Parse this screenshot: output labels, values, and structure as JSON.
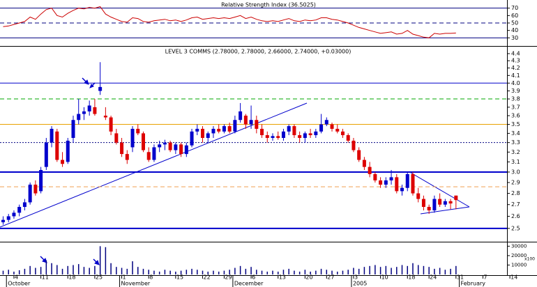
{
  "chart_data": [
    {
      "type": "line",
      "title": "Relative Strength Index (36.5025)",
      "color": "#cc0000",
      "ylim": [
        20,
        80
      ],
      "yticks": [
        30,
        40,
        50,
        60,
        70
      ],
      "levels": [
        {
          "value": 70,
          "color": "#000080",
          "style": "solid",
          "width": 1
        },
        {
          "value": 50,
          "color": "#000080",
          "style": "dashed",
          "width": 1
        },
        {
          "value": 30,
          "color": "#000080",
          "style": "solid",
          "width": 1
        }
      ],
      "values": [
        45,
        46,
        48,
        50,
        52,
        58,
        55,
        62,
        68,
        70,
        60,
        58,
        63,
        67,
        70,
        69,
        71,
        70,
        72,
        62,
        58,
        55,
        52,
        51,
        57,
        56,
        52,
        51,
        53,
        54,
        55,
        53,
        54,
        52,
        54,
        57,
        58,
        55,
        56,
        57,
        56,
        57,
        56,
        58,
        60,
        56,
        58,
        55,
        53,
        52,
        53,
        52,
        54,
        56,
        53,
        52,
        54,
        53,
        54,
        57,
        57,
        55,
        54,
        52,
        50,
        47,
        44,
        42,
        40,
        38,
        36,
        37,
        38,
        35,
        36,
        40,
        35,
        33,
        31,
        30,
        36,
        35,
        36,
        36,
        36.5,
        null,
        null,
        null,
        null,
        null,
        null,
        null,
        null,
        null,
        null
      ]
    },
    {
      "type": "candlestick",
      "title": "LEVEL 3 COMMS (2.78000, 2.78000, 2.66000, 2.74000, +0.03000)",
      "log_scale": true,
      "ylim": [
        2.4,
        4.5
      ],
      "up_color": "#0000cc",
      "down_color": "#dd0000",
      "yticks": [
        2.5,
        2.6,
        2.7,
        2.8,
        2.9,
        {
          "value": 3,
          "label": "3.0"
        },
        3.1,
        3.2,
        3.3,
        3.4,
        3.5,
        3.6,
        3.7,
        3.8,
        3.9,
        {
          "value": 4,
          "label": "4.0"
        },
        4.1,
        4.2,
        4.3,
        4.4
      ],
      "levels": [
        {
          "value": 4.0,
          "color": "#0000cc",
          "style": "solid",
          "width": 1
        },
        {
          "value": 3.8,
          "color": "#00aa00",
          "style": "dashed",
          "width": 1
        },
        {
          "value": 3.5,
          "color": "#e8a000",
          "style": "solid",
          "width": 1
        },
        {
          "value": 3.3,
          "color": "#000080",
          "style": "dotted",
          "width": 1
        },
        {
          "value": 3.0,
          "color": "#0000cc",
          "style": "solid",
          "width": 2
        },
        {
          "value": 2.86,
          "color": "#f0a050",
          "style": "dashed",
          "width": 1
        },
        {
          "value": 2.5,
          "color": "#0000cc",
          "style": "solid",
          "width": 2
        }
      ],
      "open": [
        2.55,
        2.57,
        2.6,
        2.63,
        2.68,
        2.72,
        2.88,
        2.82,
        3.05,
        3.3,
        3.42,
        3.12,
        3.1,
        3.35,
        3.55,
        3.62,
        3.65,
        3.7,
        3.9,
        3.6,
        3.58,
        3.4,
        3.3,
        3.18,
        3.25,
        3.45,
        3.4,
        3.2,
        3.12,
        3.25,
        3.28,
        3.3,
        3.22,
        3.28,
        3.18,
        3.27,
        3.42,
        3.45,
        3.35,
        3.4,
        3.45,
        3.42,
        3.48,
        3.42,
        3.55,
        3.6,
        3.5,
        3.55,
        3.45,
        3.38,
        3.35,
        3.37,
        3.35,
        3.42,
        3.48,
        3.38,
        3.35,
        3.4,
        3.38,
        3.42,
        3.5,
        3.5,
        3.45,
        3.42,
        3.38,
        3.32,
        3.22,
        3.12,
        3.05,
        2.98,
        2.92,
        2.88,
        2.92,
        2.95,
        2.82,
        2.85,
        2.98,
        2.8,
        2.75,
        2.68,
        2.65,
        2.75,
        2.7,
        2.73,
        2.78,
        null,
        null,
        null,
        null,
        null,
        null,
        null,
        null,
        null,
        null
      ],
      "high": [
        2.6,
        2.62,
        2.65,
        2.7,
        2.75,
        2.9,
        2.92,
        3.05,
        3.35,
        3.48,
        3.45,
        3.2,
        3.35,
        3.6,
        3.8,
        3.7,
        3.78,
        3.8,
        4.28,
        3.7,
        3.6,
        3.45,
        3.35,
        3.22,
        3.48,
        3.5,
        3.42,
        3.25,
        3.28,
        3.32,
        3.33,
        3.32,
        3.3,
        3.3,
        3.3,
        3.45,
        3.5,
        3.48,
        3.42,
        3.48,
        3.5,
        3.5,
        3.52,
        3.6,
        3.75,
        3.62,
        3.72,
        3.6,
        3.5,
        3.42,
        3.4,
        3.42,
        3.45,
        3.5,
        3.5,
        3.42,
        3.42,
        3.45,
        3.45,
        3.62,
        3.58,
        3.52,
        3.5,
        3.45,
        3.4,
        3.35,
        3.25,
        3.15,
        3.1,
        3.0,
        2.95,
        2.95,
        3.02,
        2.98,
        2.88,
        3.0,
        3.0,
        2.85,
        2.78,
        2.7,
        2.78,
        2.8,
        2.75,
        2.75,
        2.78,
        null,
        null,
        null,
        null,
        null,
        null,
        null,
        null,
        null,
        null
      ],
      "low": [
        2.53,
        2.55,
        2.58,
        2.6,
        2.65,
        2.7,
        2.78,
        2.8,
        3.02,
        3.25,
        3.1,
        3.05,
        3.08,
        3.3,
        3.5,
        3.55,
        3.6,
        3.6,
        3.85,
        3.55,
        3.38,
        3.28,
        3.15,
        3.08,
        3.2,
        3.38,
        3.2,
        3.1,
        3.1,
        3.2,
        3.22,
        3.2,
        3.18,
        3.15,
        3.15,
        3.25,
        3.38,
        3.3,
        3.3,
        3.35,
        3.4,
        3.4,
        3.4,
        3.4,
        3.52,
        3.45,
        3.45,
        3.4,
        3.35,
        3.3,
        3.32,
        3.33,
        3.32,
        3.38,
        3.35,
        3.3,
        3.3,
        3.35,
        3.35,
        3.4,
        3.48,
        3.42,
        3.4,
        3.35,
        3.3,
        3.2,
        3.1,
        3.02,
        2.95,
        2.9,
        2.85,
        2.85,
        2.88,
        2.8,
        2.78,
        2.82,
        2.78,
        2.72,
        2.65,
        2.62,
        2.63,
        2.68,
        2.68,
        2.66,
        2.66,
        null,
        null,
        null,
        null,
        null,
        null,
        null,
        null,
        null,
        null
      ],
      "close": [
        2.57,
        2.6,
        2.63,
        2.68,
        2.72,
        2.88,
        2.8,
        3.02,
        3.3,
        3.45,
        3.12,
        3.08,
        3.32,
        3.55,
        3.62,
        3.65,
        3.72,
        3.62,
        3.95,
        3.58,
        3.42,
        3.3,
        3.18,
        3.12,
        3.45,
        3.4,
        3.22,
        3.12,
        3.25,
        3.28,
        3.3,
        3.22,
        3.28,
        3.18,
        3.27,
        3.42,
        3.45,
        3.35,
        3.4,
        3.45,
        3.42,
        3.48,
        3.42,
        3.55,
        3.65,
        3.5,
        3.55,
        3.45,
        3.38,
        3.35,
        3.37,
        3.35,
        3.42,
        3.48,
        3.38,
        3.35,
        3.4,
        3.38,
        3.42,
        3.5,
        3.55,
        3.45,
        3.42,
        3.38,
        3.32,
        3.22,
        3.12,
        3.05,
        2.98,
        2.92,
        2.88,
        2.92,
        2.95,
        2.82,
        2.85,
        2.98,
        2.8,
        2.75,
        2.68,
        2.65,
        2.75,
        2.7,
        2.73,
        2.71,
        2.74,
        null,
        null,
        null,
        null,
        null,
        null,
        null,
        null,
        null,
        null
      ]
    },
    {
      "type": "bar",
      "color": "#000080",
      "unit_label": "x100",
      "ylim": [
        0,
        34000
      ],
      "yticks": [
        10000,
        20000,
        30000
      ],
      "values": [
        4000,
        5000,
        3000,
        4500,
        6000,
        9000,
        7000,
        8000,
        15000,
        12000,
        10000,
        6000,
        9000,
        10000,
        11000,
        8000,
        7000,
        9000,
        30000,
        29000,
        12000,
        8000,
        7000,
        6000,
        14000,
        8000,
        6000,
        5000,
        4000,
        3000,
        5000,
        4000,
        3000,
        4000,
        5000,
        6000,
        5000,
        4000,
        3000,
        4000,
        3000,
        4000,
        5000,
        7000,
        9000,
        6000,
        8000,
        5000,
        4000,
        3000,
        4000,
        3000,
        5000,
        6000,
        4000,
        3000,
        5000,
        3000,
        4000,
        6000,
        5000,
        4000,
        3000,
        4000,
        5000,
        7000,
        6000,
        8000,
        9000,
        10000,
        8000,
        9000,
        7000,
        8000,
        10000,
        9000,
        12000,
        10000,
        9000,
        8000,
        6000,
        7000,
        5000,
        6000,
        9000,
        null,
        null,
        null,
        null,
        null,
        null,
        null,
        null,
        null,
        null
      ],
      "categories": [
        null,
        null,
        "4",
        null,
        null,
        null,
        null,
        "11",
        null,
        null,
        null,
        null,
        "18",
        null,
        null,
        null,
        null,
        "25",
        null,
        null,
        null,
        null,
        "1",
        null,
        null,
        null,
        null,
        "8",
        null,
        null,
        null,
        null,
        "15",
        null,
        null,
        null,
        null,
        "22",
        null,
        null,
        null,
        "29",
        null,
        null,
        null,
        null,
        "6",
        null,
        null,
        null,
        null,
        "13",
        null,
        null,
        null,
        null,
        "20",
        null,
        null,
        null,
        "27",
        null,
        null,
        null,
        null,
        "3",
        null,
        null,
        null,
        null,
        "10",
        null,
        null,
        null,
        null,
        "18",
        null,
        null,
        null,
        "24",
        null,
        null,
        null,
        null,
        "31",
        null,
        null,
        null,
        null,
        "7",
        null,
        null,
        null,
        null,
        "14"
      ],
      "periods": [
        "October",
        "November",
        "December",
        "2005",
        "February"
      ]
    }
  ]
}
